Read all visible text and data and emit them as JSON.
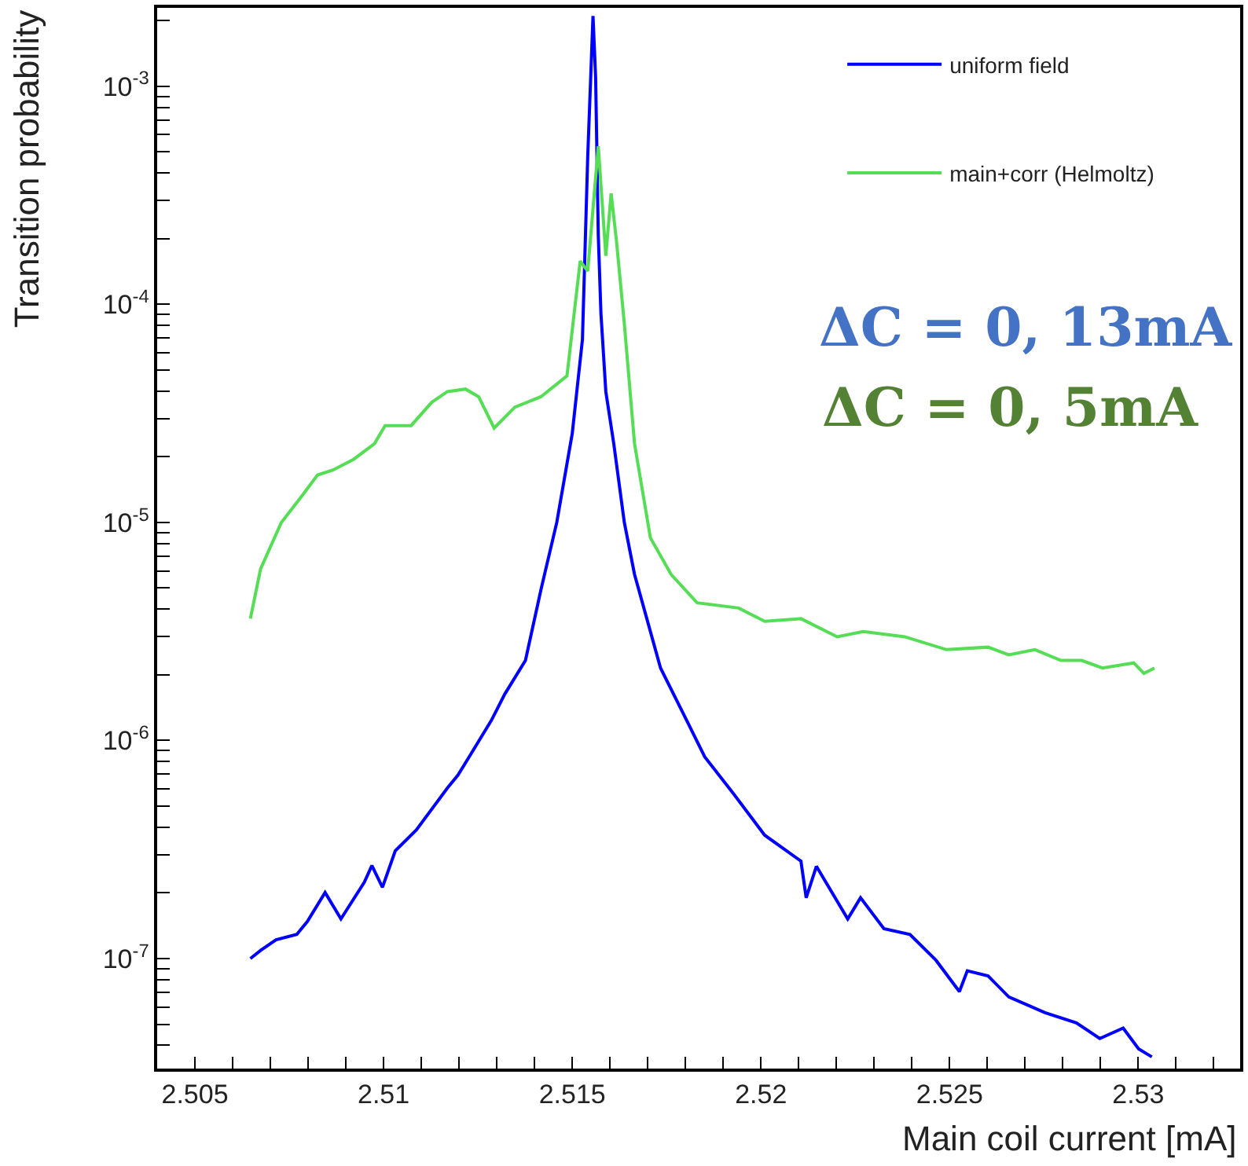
{
  "chart_data": {
    "type": "line",
    "xlabel": "Main coil current [mA]",
    "ylabel": "Transition probability",
    "log": "y",
    "legend": "top right",
    "marker": "none",
    "line_style": "solid",
    "xlim": [
      2.504,
      2.5327
    ],
    "ylim": [
      3.13e-08,
      0.00229
    ],
    "xticks": [
      2.505,
      {
        "value": 2.506,
        "label": null
      },
      {
        "value": 2.507,
        "label": null
      },
      {
        "value": 2.508,
        "label": null
      },
      {
        "value": 2.509,
        "label": null
      },
      2.51,
      {
        "value": 2.511,
        "label": null
      },
      {
        "value": 2.512,
        "label": null
      },
      {
        "value": 2.513,
        "label": null
      },
      {
        "value": 2.514,
        "label": null
      },
      2.515,
      {
        "value": 2.516,
        "label": null
      },
      {
        "value": 2.517,
        "label": null
      },
      {
        "value": 2.518,
        "label": null
      },
      {
        "value": 2.519,
        "label": null
      },
      2.52,
      {
        "value": 2.521,
        "label": null
      },
      {
        "value": 2.522,
        "label": null
      },
      {
        "value": 2.523,
        "label": null
      },
      {
        "value": 2.524,
        "label": null
      },
      2.525,
      {
        "value": 2.526,
        "label": null
      },
      {
        "value": 2.527,
        "label": null
      },
      {
        "value": 2.528,
        "label": null
      },
      {
        "value": 2.529,
        "label": null
      },
      2.53,
      {
        "value": 2.531,
        "label": null
      },
      {
        "value": 2.532,
        "label": null
      }
    ],
    "yticks": [
      {
        "value": 4e-08,
        "label": null
      },
      {
        "value": 5e-08,
        "label": null
      },
      {
        "value": 6e-08,
        "label": null
      },
      {
        "value": 7e-08,
        "label": null
      },
      {
        "value": 8e-08,
        "label": null
      },
      {
        "value": 9e-08,
        "label": null
      },
      {
        "value": 1e-07,
        "label": "10$^{-7}$"
      },
      {
        "value": 2e-07,
        "label": null
      },
      {
        "value": 3e-07,
        "label": null
      },
      {
        "value": 4e-07,
        "label": null
      },
      {
        "value": 5e-07,
        "label": null
      },
      {
        "value": 6e-07,
        "label": null
      },
      {
        "value": 7e-07,
        "label": null
      },
      {
        "value": 8e-07,
        "label": null
      },
      {
        "value": 9e-07,
        "label": null
      },
      {
        "value": 1e-06,
        "label": "10$^{-6}$"
      },
      {
        "value": 2e-06,
        "label": null
      },
      {
        "value": 3e-06,
        "label": null
      },
      {
        "value": 4e-06,
        "label": null
      },
      {
        "value": 5e-06,
        "label": null
      },
      {
        "value": 6e-06,
        "label": null
      },
      {
        "value": 7e-06,
        "label": null
      },
      {
        "value": 8e-06,
        "label": null
      },
      {
        "value": 9e-06,
        "label": null
      },
      {
        "value": 1e-05,
        "label": "10$^{-5}$"
      },
      {
        "value": 2e-05,
        "label": null
      },
      {
        "value": 3e-05,
        "label": null
      },
      {
        "value": 4e-05,
        "label": null
      },
      {
        "value": 5e-05,
        "label": null
      },
      {
        "value": 6e-05,
        "label": null
      },
      {
        "value": 7e-05,
        "label": null
      },
      {
        "value": 8e-05,
        "label": null
      },
      {
        "value": 9e-05,
        "label": null
      },
      {
        "value": 0.0001,
        "label": "10$^{-4}$"
      },
      {
        "value": 0.0002,
        "label": null
      },
      {
        "value": 0.0003,
        "label": null
      },
      {
        "value": 0.0004,
        "label": null
      },
      {
        "value": 0.0005,
        "label": null
      },
      {
        "value": 0.0006,
        "label": null
      },
      {
        "value": 0.0007,
        "label": null
      },
      {
        "value": 0.0008,
        "label": null
      },
      {
        "value": 0.0009,
        "label": null
      },
      {
        "value": 0.001,
        "label": "10$^{-3}$"
      },
      {
        "value": 0.002,
        "label": null
      }
    ],
    "series": [
      {
        "name": "uniform field",
        "color": "#0000ff",
        "x": [
          2.50647,
          2.50674,
          2.50715,
          2.5077,
          2.50798,
          2.50845,
          2.50887,
          2.50949,
          2.50969,
          2.50997,
          2.51031,
          2.51087,
          2.51169,
          2.51197,
          2.51231,
          2.51286,
          2.51321,
          2.51376,
          2.51417,
          2.51459,
          2.515,
          2.51527,
          2.51541,
          2.51555,
          2.51562,
          2.51569,
          2.51576,
          2.51589,
          2.5161,
          2.51638,
          2.51665,
          2.51734,
          2.51803,
          2.51851,
          2.51927,
          2.5201,
          2.52106,
          2.5212,
          2.52147,
          2.5223,
          2.52264,
          2.52326,
          2.52395,
          2.52464,
          2.52526,
          2.52547,
          2.52602,
          2.52657,
          2.52753,
          2.52836,
          2.52898,
          2.5296,
          2.53001,
          2.53036
        ],
        "values": [
          1e-07,
          1.09e-07,
          1.22e-07,
          1.29e-07,
          1.48e-07,
          2.01e-07,
          1.52e-07,
          2.24e-07,
          2.67e-07,
          2.12e-07,
          3.12e-07,
          3.89e-07,
          6.05e-07,
          6.94e-07,
          8.65e-07,
          1.24e-06,
          1.63e-06,
          2.33e-06,
          4.91e-06,
          1e-05,
          2.56e-05,
          6.9e-05,
          0.000475,
          0.0021,
          0.00109,
          0.000208,
          9.1e-05,
          3.98e-05,
          2.3e-05,
          1e-05,
          5.78e-06,
          2.15e-06,
          1.24e-06,
          8.42e-07,
          5.71e-07,
          3.68e-07,
          2.8e-07,
          1.9e-07,
          2.65e-07,
          1.52e-07,
          1.9e-07,
          1.37e-07,
          1.29e-07,
          9.82e-08,
          7.06e-08,
          8.79e-08,
          8.32e-08,
          6.67e-08,
          5.65e-08,
          5.07e-08,
          4.3e-08,
          4.8e-08,
          3.85e-08,
          3.54e-08
        ]
      },
      {
        "name": "main+corr (Helmoltz)",
        "color": "#55dd55",
        "x": [
          2.50647,
          2.50674,
          2.50729,
          2.50783,
          2.50825,
          2.50866,
          2.50921,
          2.50976,
          2.51004,
          2.51073,
          2.51128,
          2.51169,
          2.51217,
          2.51252,
          2.51293,
          2.51348,
          2.51417,
          2.51486,
          2.51521,
          2.51541,
          2.51569,
          2.51589,
          2.51603,
          2.51617,
          2.51638,
          2.51665,
          2.51707,
          2.51762,
          2.51831,
          2.51941,
          2.5201,
          2.52106,
          2.52202,
          2.52271,
          2.52381,
          2.52492,
          2.52602,
          2.52657,
          2.52726,
          2.52795,
          2.5285,
          2.52905,
          2.52988,
          2.53015,
          2.53043
        ],
        "values": [
          3.62e-06,
          6.12e-06,
          1e-05,
          1.32e-05,
          1.65e-05,
          1.74e-05,
          1.95e-05,
          2.3e-05,
          2.78e-05,
          2.78e-05,
          3.56e-05,
          3.98e-05,
          4.09e-05,
          3.77e-05,
          2.71e-05,
          3.38e-05,
          3.77e-05,
          4.7e-05,
          0.000158,
          0.000142,
          0.000531,
          0.000167,
          0.000323,
          0.000197,
          8.15e-05,
          2.3e-05,
          8.51e-06,
          5.78e-06,
          4.28e-06,
          4.05e-06,
          3.52e-06,
          3.62e-06,
          2.99e-06,
          3.16e-06,
          2.99e-06,
          2.61e-06,
          2.68e-06,
          2.47e-06,
          2.61e-06,
          2.33e-06,
          2.33e-06,
          2.15e-06,
          2.27e-06,
          2.03e-06,
          2.15e-06
        ]
      }
    ],
    "annotations": [
      "ΔC = 0, 13mA",
      "ΔC = 0, 5mA"
    ]
  }
}
